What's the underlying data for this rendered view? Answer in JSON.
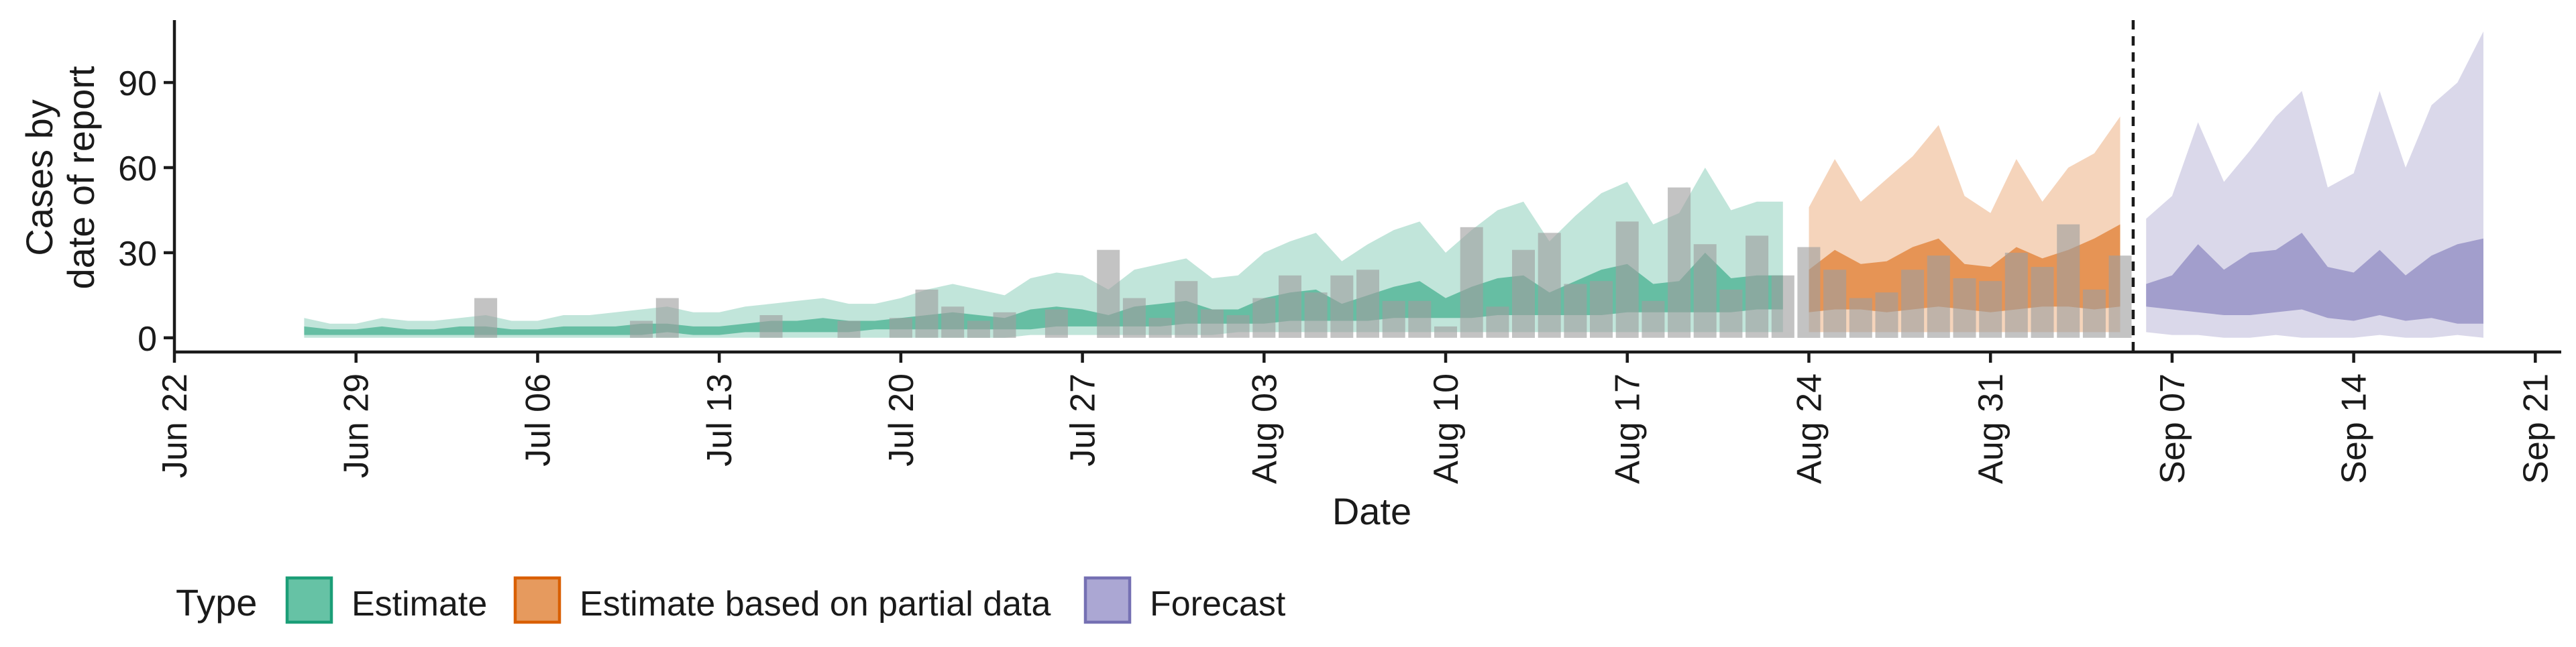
{
  "chart_data": {
    "type": "area",
    "xlabel": "Date",
    "ylabel_lines": [
      "Cases by",
      "date of report"
    ],
    "ylim": [
      -5,
      112
    ],
    "x_ticks": [
      "Jun 22",
      "Jun 29",
      "Jul 06",
      "Jul 13",
      "Jul 20",
      "Jul 27",
      "Aug 03",
      "Aug 10",
      "Aug 17",
      "Aug 24",
      "Aug 31",
      "Sep 07",
      "Sep 14",
      "Sep 21"
    ],
    "y_ticks": [
      0,
      30,
      60,
      90
    ],
    "x_axis_start": "2020-06-21",
    "x_axis_end": "2020-09-21",
    "forecast_cutoff_date": "2020-09-04",
    "legend": {
      "title": "Type",
      "position": "bottom",
      "items": [
        {
          "label": "Estimate",
          "fill": "#66C2A5",
          "stroke": "#1B9E77"
        },
        {
          "label": "Estimate based on partial data",
          "fill": "#E69A5E",
          "stroke": "#D95F02"
        },
        {
          "label": "Forecast",
          "fill": "#ABA7D3",
          "stroke": "#7570B3"
        }
      ]
    },
    "series": [
      {
        "type_label": "Estimate",
        "color": "#1B9E77",
        "dates": [
          "2020-06-26",
          "2020-06-27",
          "2020-06-28",
          "2020-06-29",
          "2020-06-30",
          "2020-07-01",
          "2020-07-02",
          "2020-07-03",
          "2020-07-04",
          "2020-07-05",
          "2020-07-06",
          "2020-07-07",
          "2020-07-08",
          "2020-07-09",
          "2020-07-10",
          "2020-07-11",
          "2020-07-12",
          "2020-07-13",
          "2020-07-14",
          "2020-07-15",
          "2020-07-16",
          "2020-07-17",
          "2020-07-18",
          "2020-07-19",
          "2020-07-20",
          "2020-07-21",
          "2020-07-22",
          "2020-07-23",
          "2020-07-24",
          "2020-07-25",
          "2020-07-26",
          "2020-07-27",
          "2020-07-28",
          "2020-07-29",
          "2020-07-30",
          "2020-07-31",
          "2020-08-01",
          "2020-08-02",
          "2020-08-03",
          "2020-08-04",
          "2020-08-05",
          "2020-08-06",
          "2020-08-07",
          "2020-08-08",
          "2020-08-09",
          "2020-08-10",
          "2020-08-11",
          "2020-08-12",
          "2020-08-13",
          "2020-08-14",
          "2020-08-15",
          "2020-08-16",
          "2020-08-17",
          "2020-08-18",
          "2020-08-19",
          "2020-08-20",
          "2020-08-21",
          "2020-08-22"
        ],
        "lower90": [
          0,
          0,
          0,
          0,
          0,
          0,
          0,
          0,
          0,
          0,
          0,
          0,
          0,
          0,
          0,
          0,
          0,
          0,
          0,
          0,
          0,
          0,
          0,
          0,
          0,
          0,
          0,
          0,
          1,
          1,
          1,
          1,
          1,
          1,
          1,
          1,
          2,
          2,
          2,
          2,
          2,
          2,
          2,
          2,
          2,
          2,
          2,
          2,
          2,
          2,
          2,
          2,
          2,
          2,
          2,
          2,
          2,
          2
        ],
        "lower50": [
          1,
          1,
          1,
          1,
          1,
          1,
          1,
          1,
          1,
          1,
          1,
          1,
          1,
          1,
          2,
          1,
          1,
          2,
          2,
          2,
          2,
          2,
          3,
          3,
          3,
          3,
          3,
          3,
          3,
          4,
          4,
          4,
          4,
          4,
          5,
          5,
          5,
          5,
          6,
          6,
          6,
          6,
          7,
          7,
          7,
          7,
          8,
          8,
          8,
          8,
          8,
          9,
          9,
          9,
          9,
          9,
          10,
          10
        ],
        "upper50": [
          4,
          3,
          3,
          4,
          3,
          3,
          4,
          4,
          3,
          3,
          4,
          4,
          4,
          5,
          5,
          4,
          4,
          5,
          6,
          6,
          7,
          6,
          6,
          7,
          8,
          9,
          8,
          7,
          10,
          11,
          10,
          8,
          11,
          12,
          13,
          10,
          10,
          14,
          16,
          17,
          12,
          15,
          18,
          20,
          14,
          18,
          21,
          22,
          16,
          20,
          24,
          26,
          19,
          20,
          30,
          21,
          22,
          22
        ],
        "upper90": [
          7,
          5,
          5,
          7,
          6,
          6,
          7,
          8,
          6,
          6,
          8,
          8,
          9,
          10,
          11,
          9,
          9,
          11,
          12,
          13,
          14,
          12,
          12,
          14,
          17,
          19,
          17,
          15,
          21,
          23,
          22,
          17,
          24,
          26,
          28,
          21,
          22,
          30,
          34,
          37,
          27,
          33,
          38,
          41,
          30,
          38,
          45,
          48,
          34,
          43,
          51,
          55,
          40,
          44,
          60,
          45,
          48,
          48
        ]
      },
      {
        "type_label": "Estimate based on partial data",
        "color": "#D95F02",
        "dates": [
          "2020-08-23",
          "2020-08-24",
          "2020-08-25",
          "2020-08-26",
          "2020-08-27",
          "2020-08-28",
          "2020-08-29",
          "2020-08-30",
          "2020-08-31",
          "2020-09-01",
          "2020-09-02",
          "2020-09-03",
          "2020-09-04"
        ],
        "lower90": [
          2,
          2,
          2,
          2,
          2,
          2,
          2,
          2,
          2,
          2,
          2,
          2,
          2
        ],
        "lower50": [
          9,
          10,
          10,
          9,
          10,
          11,
          10,
          9,
          10,
          11,
          11,
          10,
          11
        ],
        "upper50": [
          24,
          31,
          26,
          27,
          32,
          35,
          26,
          25,
          32,
          28,
          31,
          35,
          40
        ],
        "upper90": [
          46,
          63,
          48,
          56,
          64,
          75,
          50,
          44,
          63,
          48,
          60,
          65,
          78
        ]
      },
      {
        "type_label": "Forecast",
        "color": "#7570B3",
        "dates": [
          "2020-09-05",
          "2020-09-06",
          "2020-09-07",
          "2020-09-08",
          "2020-09-09",
          "2020-09-10",
          "2020-09-11",
          "2020-09-12",
          "2020-09-13",
          "2020-09-14",
          "2020-09-15",
          "2020-09-16",
          "2020-09-17",
          "2020-09-18"
        ],
        "lower90": [
          2,
          1,
          1,
          0,
          0,
          1,
          0,
          0,
          0,
          1,
          0,
          0,
          1,
          0
        ],
        "lower50": [
          11,
          10,
          9,
          8,
          8,
          9,
          10,
          7,
          6,
          8,
          6,
          7,
          5,
          5
        ],
        "upper50": [
          19,
          22,
          33,
          24,
          30,
          31,
          37,
          25,
          23,
          31,
          22,
          29,
          33,
          35
        ],
        "upper90": [
          42,
          50,
          76,
          55,
          66,
          78,
          87,
          53,
          58,
          87,
          60,
          82,
          90,
          108
        ]
      }
    ],
    "observed": {
      "color": "#9E9E9E",
      "dates": [
        "2020-07-03",
        "2020-07-09",
        "2020-07-10",
        "2020-07-14",
        "2020-07-17",
        "2020-07-19",
        "2020-07-20",
        "2020-07-21",
        "2020-07-22",
        "2020-07-23",
        "2020-07-25",
        "2020-07-27",
        "2020-07-28",
        "2020-07-29",
        "2020-07-30",
        "2020-07-31",
        "2020-08-01",
        "2020-08-02",
        "2020-08-03",
        "2020-08-04",
        "2020-08-05",
        "2020-08-06",
        "2020-08-07",
        "2020-08-08",
        "2020-08-09",
        "2020-08-10",
        "2020-08-11",
        "2020-08-12",
        "2020-08-13",
        "2020-08-14",
        "2020-08-15",
        "2020-08-16",
        "2020-08-17",
        "2020-08-18",
        "2020-08-19",
        "2020-08-20",
        "2020-08-21",
        "2020-08-22",
        "2020-08-23",
        "2020-08-24",
        "2020-08-25",
        "2020-08-26",
        "2020-08-27",
        "2020-08-28",
        "2020-08-29",
        "2020-08-30",
        "2020-08-31",
        "2020-09-01",
        "2020-09-02",
        "2020-09-03",
        "2020-09-04"
      ],
      "values": [
        14,
        6,
        14,
        8,
        6,
        7,
        17,
        11,
        6,
        9,
        10,
        31,
        14,
        7,
        20,
        10,
        8,
        14,
        22,
        16,
        22,
        24,
        13,
        13,
        4,
        39,
        11,
        31,
        37,
        19,
        20,
        41,
        13,
        53,
        33,
        17,
        36,
        22,
        32,
        24,
        14,
        16,
        24,
        29,
        21,
        20,
        30,
        25,
        40,
        17,
        29
      ]
    }
  }
}
